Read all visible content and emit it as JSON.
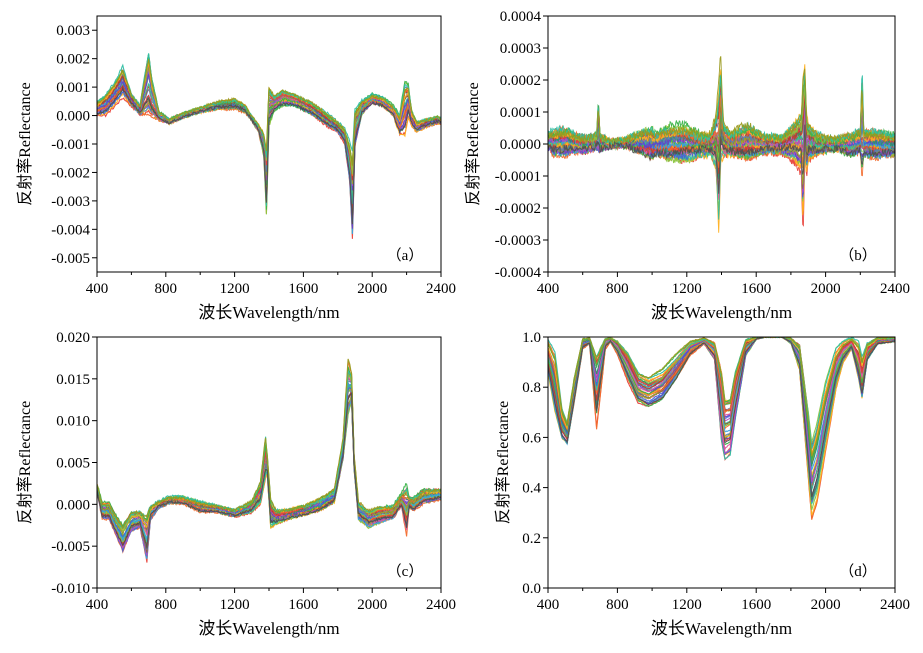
{
  "chart_data": [
    {
      "id": "a",
      "type": "line",
      "panel_label": "（a）",
      "xlabel": "波长Wavelength/nm",
      "ylabel": "反射率Reflectance",
      "xlim": [
        400,
        2400
      ],
      "ylim": [
        -0.0055,
        0.0035
      ],
      "xticks": [
        400,
        800,
        1200,
        1600,
        2000,
        2400
      ],
      "xtick_labels": [
        "400",
        "800",
        "1200",
        "1600",
        "2000",
        "2400"
      ],
      "yticks": [
        -0.005,
        -0.004,
        -0.003,
        -0.002,
        -0.001,
        0.0,
        0.001,
        0.002,
        0.003
      ],
      "ytick_labels": [
        "-0.005",
        "-0.004",
        "-0.003",
        "-0.002",
        "-0.001",
        "0.000",
        "0.001",
        "0.002",
        "0.003"
      ],
      "grid": false,
      "series_count": 40,
      "envelope": {
        "x": [
          400,
          450,
          500,
          550,
          600,
          650,
          700,
          720,
          760,
          820,
          900,
          1000,
          1100,
          1200,
          1260,
          1300,
          1340,
          1370,
          1385,
          1400,
          1430,
          1480,
          1550,
          1650,
          1740,
          1800,
          1840,
          1870,
          1885,
          1900,
          1940,
          2000,
          2060,
          2120,
          2160,
          2190,
          2210,
          2230,
          2260,
          2320,
          2380,
          2400
        ],
        "low": [
          0.0,
          0.0,
          0.0003,
          0.0006,
          0.0003,
          0.0,
          -0.0002,
          -0.0002,
          -0.0002,
          -0.0003,
          -0.0001,
          0.0001,
          0.0002,
          0.0002,
          0.0001,
          -0.0002,
          -0.0006,
          -0.0015,
          -0.0037,
          -0.0005,
          0.0001,
          0.0003,
          0.0003,
          0.0,
          -0.0004,
          -0.0006,
          -0.001,
          -0.0025,
          -0.0046,
          -0.0012,
          0.0,
          0.0004,
          0.0003,
          0.0,
          -0.0007,
          -0.0008,
          -0.0001,
          -0.0004,
          -0.0006,
          -0.0004,
          -0.0003,
          -0.0003
        ],
        "high": [
          0.0005,
          0.0008,
          0.0012,
          0.0018,
          0.0008,
          0.0004,
          0.0026,
          0.0015,
          0.0002,
          -0.0001,
          0.0001,
          0.0003,
          0.0005,
          0.0006,
          0.0004,
          0.0,
          -0.0003,
          -0.0005,
          -0.0008,
          0.0013,
          0.0008,
          0.001,
          0.0008,
          0.0005,
          0.0001,
          -0.0002,
          -0.0004,
          -0.0008,
          -0.001,
          0.0004,
          0.0006,
          0.0008,
          0.0007,
          0.0004,
          0.0001,
          0.0014,
          0.0012,
          0.0002,
          -0.0002,
          -0.0001,
          0.0,
          -0.0001
        ]
      }
    },
    {
      "id": "b",
      "type": "line",
      "panel_label": "（b）",
      "xlabel": "波长Wavelength/nm",
      "ylabel": "反射率Reflectance",
      "xlim": [
        400,
        2400
      ],
      "ylim": [
        -0.0004,
        0.0004
      ],
      "xticks": [
        400,
        800,
        1200,
        1600,
        2000,
        2400
      ],
      "xtick_labels": [
        "400",
        "800",
        "1200",
        "1600",
        "2000",
        "2400"
      ],
      "yticks": [
        -0.0004,
        -0.0003,
        -0.0002,
        -0.0001,
        0.0,
        0.0001,
        0.0002,
        0.0003,
        0.0004
      ],
      "ytick_labels": [
        "-0.0004",
        "-0.0003",
        "-0.0002",
        "-0.0001",
        "0.0000",
        "0.0001",
        "0.0002",
        "0.0003",
        "0.0004"
      ],
      "grid": false,
      "series_count": 40,
      "envelope": {
        "x": [
          400,
          450,
          500,
          560,
          620,
          680,
          690,
          700,
          760,
          850,
          950,
          1000,
          1020,
          1100,
          1200,
          1280,
          1340,
          1370,
          1385,
          1395,
          1410,
          1450,
          1550,
          1650,
          1750,
          1820,
          1860,
          1870,
          1880,
          1890,
          1900,
          1950,
          2050,
          2150,
          2200,
          2210,
          2220,
          2300,
          2400
        ],
        "low": [
          -2e-05,
          -4e-05,
          -4e-05,
          -3e-05,
          -3e-05,
          -2e-05,
          -5e-05,
          -3e-05,
          -1e-05,
          -1e-05,
          -4e-05,
          -6e-05,
          -4e-05,
          -6e-05,
          -6e-05,
          -4e-05,
          -4e-05,
          -0.0001,
          -0.00031,
          -8e-05,
          -5e-05,
          -4e-05,
          -6e-05,
          -3e-05,
          -3e-05,
          -6e-05,
          -0.0001,
          -0.00033,
          -6e-05,
          -0.00012,
          -6e-05,
          -4e-05,
          -2e-05,
          -4e-05,
          -3e-05,
          -0.00012,
          -4e-05,
          -5e-05,
          -4e-05
        ],
        "high": [
          4e-05,
          5e-05,
          6e-05,
          4e-05,
          3e-05,
          4e-05,
          0.00018,
          4e-05,
          1e-05,
          2e-05,
          5e-05,
          6e-05,
          4e-05,
          7e-05,
          7e-05,
          4e-05,
          4e-05,
          0.00012,
          0.00024,
          0.00031,
          8e-05,
          4e-05,
          7e-05,
          3e-05,
          3e-05,
          8e-05,
          0.00012,
          0.0003,
          0.00029,
          0.00012,
          8e-05,
          4e-05,
          2e-05,
          4e-05,
          5e-05,
          0.00028,
          5e-05,
          5e-05,
          4e-05
        ]
      }
    },
    {
      "id": "c",
      "type": "line",
      "panel_label": "（c）",
      "xlabel": "波长Wavelength/nm",
      "ylabel": "反射率Reflectance",
      "xlim": [
        400,
        2400
      ],
      "ylim": [
        -0.01,
        0.02
      ],
      "xticks": [
        400,
        800,
        1200,
        1600,
        2000,
        2400
      ],
      "xtick_labels": [
        "400",
        "800",
        "1200",
        "1600",
        "2000",
        "2400"
      ],
      "yticks": [
        -0.01,
        -0.005,
        0.0,
        0.005,
        0.01,
        0.015,
        0.02
      ],
      "ytick_labels": [
        "-0.010",
        "-0.005",
        "0.000",
        "0.005",
        "0.010",
        "0.015",
        "0.020"
      ],
      "grid": false,
      "series_count": 40,
      "envelope": {
        "x": [
          400,
          430,
          470,
          510,
          550,
          600,
          650,
          690,
          710,
          760,
          820,
          900,
          1000,
          1100,
          1200,
          1300,
          1350,
          1380,
          1390,
          1410,
          1440,
          1500,
          1600,
          1700,
          1780,
          1830,
          1860,
          1880,
          1895,
          1920,
          1980,
          2050,
          2120,
          2170,
          2200,
          2215,
          2240,
          2300,
          2400
        ],
        "low": [
          0.0015,
          -0.002,
          -0.002,
          -0.004,
          -0.006,
          -0.0035,
          -0.003,
          -0.0075,
          -0.002,
          -0.0005,
          0.0,
          0.0,
          -0.001,
          -0.001,
          -0.0015,
          -0.001,
          0.0,
          0.003,
          0.0035,
          -0.003,
          -0.0025,
          -0.002,
          -0.0015,
          -0.001,
          0.0,
          0.005,
          0.01,
          0.012,
          0.004,
          -0.002,
          -0.003,
          -0.0025,
          -0.002,
          -0.0005,
          -0.0045,
          -0.0005,
          -0.001,
          0.0,
          0.0005
        ],
        "high": [
          0.0025,
          0.0005,
          0.0005,
          -0.001,
          -0.002,
          -0.0005,
          -0.0005,
          -0.0005,
          0.0,
          0.0005,
          0.001,
          0.001,
          0.0005,
          0.0,
          -0.0005,
          0.0005,
          0.003,
          0.0085,
          0.006,
          0.001,
          -0.0005,
          -0.0005,
          0.0,
          0.001,
          0.002,
          0.008,
          0.018,
          0.016,
          0.006,
          0.0005,
          -0.0005,
          0.0,
          0.0,
          0.0015,
          0.003,
          0.001,
          0.001,
          0.002,
          0.002
        ]
      }
    },
    {
      "id": "d",
      "type": "line",
      "panel_label": "（d）",
      "xlabel": "波长Wavelength/nm",
      "ylabel": "反射率Reflectance",
      "xlim": [
        400,
        2400
      ],
      "ylim": [
        0.0,
        1.0
      ],
      "xticks": [
        400,
        800,
        1200,
        1600,
        2000,
        2400
      ],
      "xtick_labels": [
        "400",
        "800",
        "1200",
        "1600",
        "2000",
        "2400"
      ],
      "yticks": [
        0.0,
        0.2,
        0.4,
        0.6,
        0.8,
        1.0
      ],
      "ytick_labels": [
        "0.0",
        "0.2",
        "0.4",
        "0.6",
        "0.8",
        "1.0"
      ],
      "grid": false,
      "series_count": 40,
      "envelope": {
        "x": [
          400,
          440,
          480,
          510,
          550,
          600,
          640,
          680,
          700,
          730,
          760,
          800,
          860,
          920,
          980,
          1060,
          1140,
          1220,
          1300,
          1360,
          1400,
          1420,
          1450,
          1480,
          1540,
          1600,
          1650,
          1700,
          1750,
          1800,
          1850,
          1900,
          1920,
          1950,
          2000,
          2060,
          2100,
          2150,
          2190,
          2210,
          2240,
          2300,
          2400
        ],
        "low": [
          0.85,
          0.68,
          0.58,
          0.56,
          0.72,
          0.95,
          0.97,
          0.62,
          0.75,
          0.95,
          0.98,
          0.93,
          0.82,
          0.73,
          0.71,
          0.74,
          0.82,
          0.92,
          0.97,
          0.9,
          0.55,
          0.48,
          0.5,
          0.65,
          0.92,
          0.99,
          1.0,
          1.0,
          1.0,
          0.97,
          0.85,
          0.4,
          0.23,
          0.3,
          0.52,
          0.78,
          0.89,
          0.95,
          0.82,
          0.74,
          0.9,
          0.97,
          0.98
        ],
        "high": [
          1.0,
          0.96,
          0.73,
          0.67,
          0.85,
          1.0,
          1.0,
          0.98,
          0.99,
          1.0,
          1.0,
          0.99,
          0.95,
          0.87,
          0.85,
          0.88,
          0.94,
          0.99,
          1.0,
          0.99,
          0.92,
          0.8,
          0.8,
          0.9,
          1.0,
          1.0,
          1.0,
          1.0,
          1.0,
          1.0,
          0.99,
          0.75,
          0.63,
          0.7,
          0.85,
          0.97,
          0.99,
          1.0,
          0.99,
          0.93,
          0.98,
          1.0,
          1.0
        ]
      }
    }
  ],
  "colors": {
    "series_palette": [
      "#e8413a",
      "#f26b2e",
      "#ffb020",
      "#8bc53f",
      "#3cb44b",
      "#2fbfa4",
      "#3aa0e0",
      "#4363d8",
      "#6a3dc7",
      "#b14ec0",
      "#e25c9b",
      "#8a6a3b",
      "#9aa82b",
      "#2f8f6d",
      "#5b7fb0",
      "#c0392b"
    ],
    "outlier_series": "#9a9a1e",
    "dark_series": "#505050",
    "axis": "#000000"
  }
}
